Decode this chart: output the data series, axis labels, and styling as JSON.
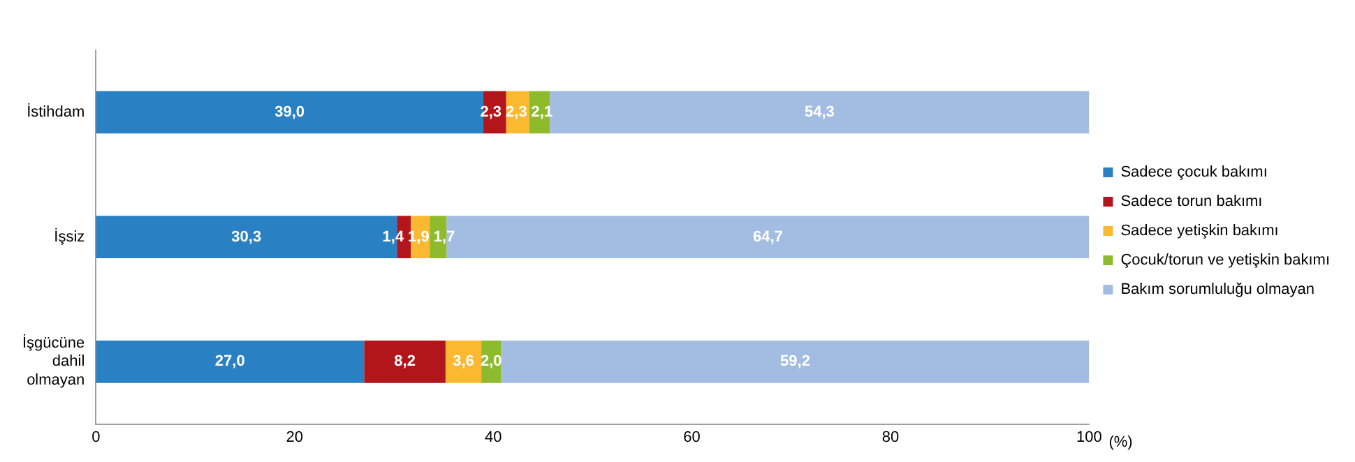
{
  "chart_data": {
    "type": "bar",
    "orientation": "horizontal",
    "stacked": true,
    "xlabel": "(%)",
    "categories": [
      "İstihdam",
      "İşsiz",
      "İşgücüne dahil olmayan"
    ],
    "series": [
      {
        "name": "Sadece çocuk bakımı",
        "color": "#2980c3",
        "values": [
          39.0,
          30.3,
          27.0
        ],
        "value_labels": [
          "39,0",
          "30,3",
          "27,0"
        ]
      },
      {
        "name": "Sadece torun bakımı",
        "color": "#b2161a",
        "values": [
          2.3,
          1.4,
          8.2
        ],
        "value_labels": [
          "2,3",
          "1,4",
          "8,2"
        ]
      },
      {
        "name": "Sadece yetişkin bakımı",
        "color": "#fbb931",
        "values": [
          2.3,
          1.9,
          3.6
        ],
        "value_labels": [
          "2,3",
          "1,9",
          "3,6"
        ]
      },
      {
        "name": "Çocuk/torun ve yetişkin bakımı",
        "color": "#8dbb2c",
        "values": [
          2.1,
          1.7,
          2.0
        ],
        "value_labels": [
          "2,1",
          "1,7",
          "2,0"
        ]
      },
      {
        "name": "Bakım sorumluluğu olmayan",
        "color": "#a3bde2",
        "values": [
          54.3,
          64.7,
          59.2
        ],
        "value_labels": [
          "54,3",
          "64,7",
          "59,2"
        ]
      }
    ],
    "xlim": [
      0,
      100
    ],
    "xticks": [
      0,
      20,
      40,
      60,
      80,
      100
    ],
    "grid": false,
    "legend": "right"
  }
}
